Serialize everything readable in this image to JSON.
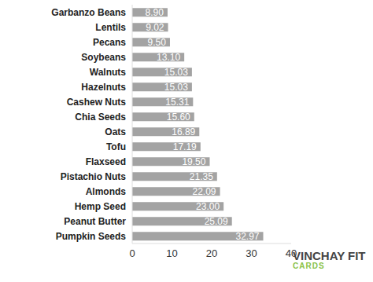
{
  "chart_data": {
    "type": "bar",
    "orientation": "horizontal",
    "categories": [
      "Garbanzo Beans",
      "Lentils",
      "Pecans",
      "Soybeans",
      "Walnuts",
      "Hazelnuts",
      "Cashew Nuts",
      "Chia Seeds",
      "Oats",
      "Tofu",
      "Flaxseed",
      "Pistachio Nuts",
      "Almonds",
      "Hemp Seed",
      "Peanut Butter",
      "Pumpkin Seeds"
    ],
    "values": [
      8.9,
      9.02,
      9.5,
      13.1,
      15.03,
      15.03,
      15.31,
      15.6,
      16.89,
      17.19,
      19.5,
      21.35,
      22.09,
      23.0,
      25.09,
      32.97
    ],
    "value_labels": [
      "8.90",
      "9.02",
      "9.50",
      "13.10",
      "15.03",
      "15.03",
      "15.31",
      "15.60",
      "16.89",
      "17.19",
      "19.50",
      "21.35",
      "22.09",
      "23.00",
      "25.09",
      "32.97"
    ],
    "color": "#a3a3a3",
    "xlim": [
      0,
      40
    ],
    "xticks": [
      0,
      10,
      20,
      30,
      40
    ],
    "grid": false,
    "data_labels": true,
    "annotations": [
      "VINCHAY FIT",
      "CARDS"
    ]
  }
}
